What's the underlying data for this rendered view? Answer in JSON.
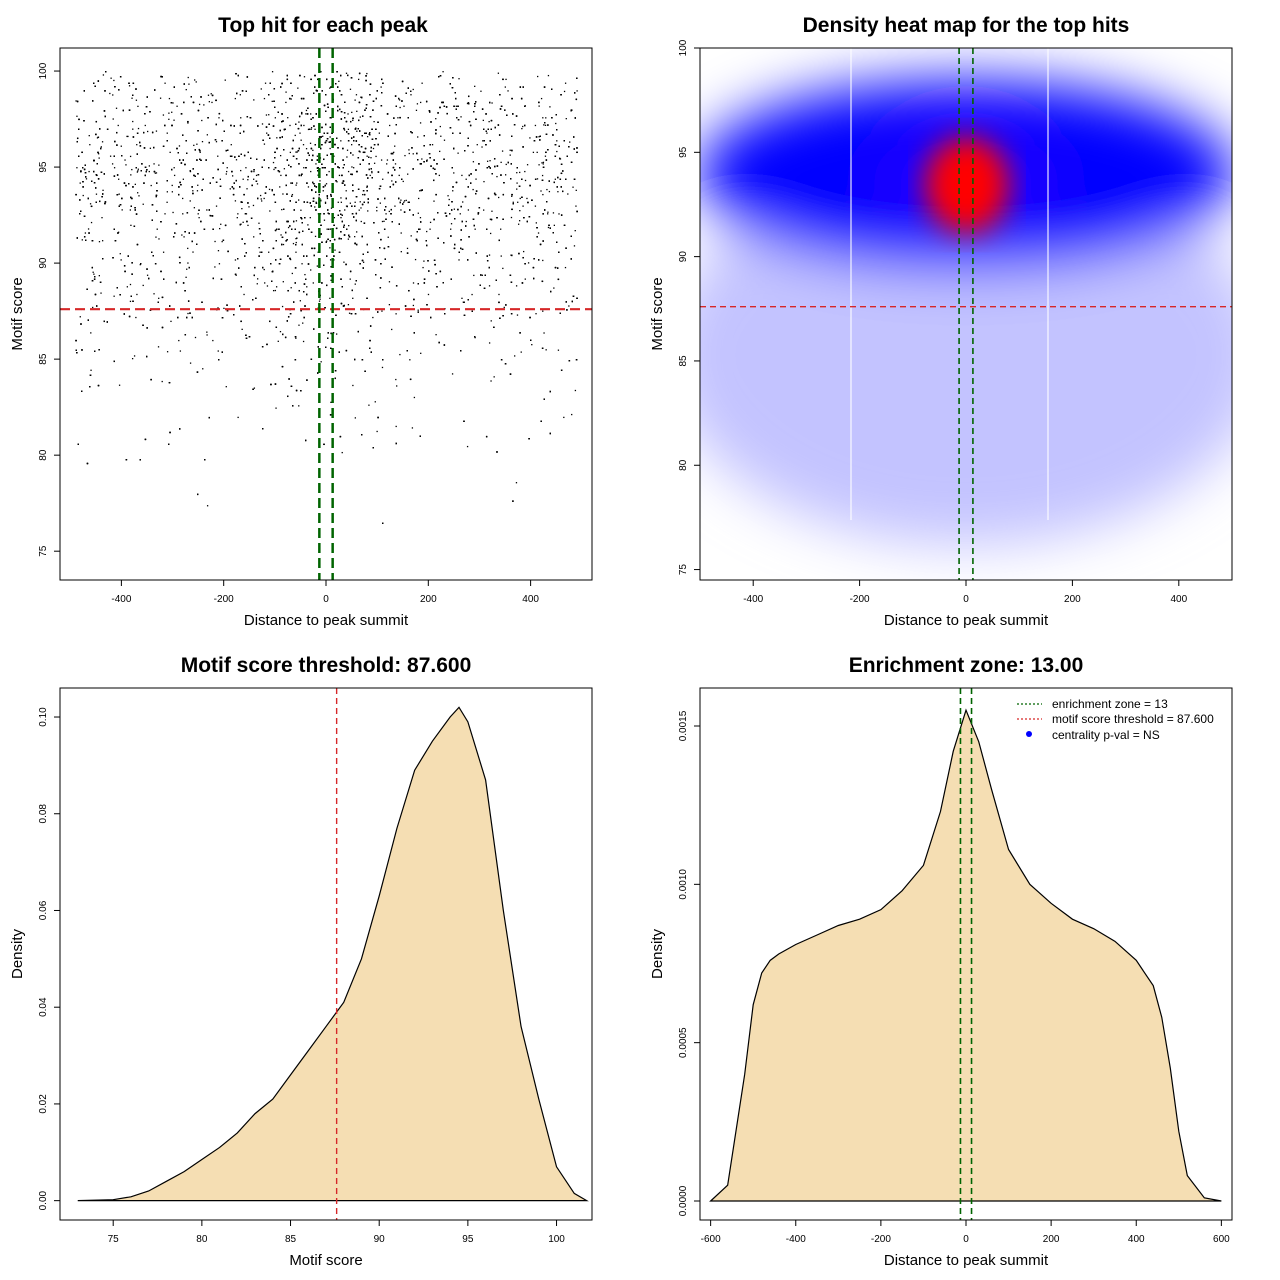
{
  "colors": {
    "fill": "#f5deb3",
    "threshold": "#d62728",
    "zone": "#006400",
    "heat_low": "#ffffff",
    "heat_mid": "#0000ff",
    "heat_high": "#ff0000",
    "point": "#000000"
  },
  "chart_data": [
    {
      "type": "scatter",
      "title": "Top hit for each peak",
      "xlabel": "Distance to peak summit",
      "ylabel": "Motif score",
      "xlim": [
        -520,
        520
      ],
      "ylim": [
        73.5,
        101.2
      ],
      "xticks": [
        -400,
        -200,
        0,
        200,
        400
      ],
      "yticks": [
        75,
        80,
        85,
        90,
        95,
        100
      ],
      "threshold_y": 87.6,
      "zone_x": [
        -13,
        13
      ],
      "point_density_profile": {
        "score_bins": [
          77,
          79,
          81,
          83,
          85,
          87,
          89,
          91,
          93,
          95,
          97,
          99
        ],
        "relative_density": [
          0.01,
          0.02,
          0.05,
          0.1,
          0.17,
          0.26,
          0.43,
          0.64,
          0.86,
          1.0,
          0.86,
          0.47
        ]
      }
    },
    {
      "type": "heatmap",
      "title": "Density heat map for the top hits",
      "xlabel": "Distance to peak summit",
      "ylabel": "Motif score",
      "xlim": [
        -500,
        500
      ],
      "ylim": [
        74.5,
        100
      ],
      "xticks": [
        -400,
        -200,
        0,
        200,
        400
      ],
      "yticks": [
        75,
        80,
        85,
        90,
        95,
        100
      ],
      "threshold_y": 87.6,
      "zone_x": [
        -13,
        13
      ],
      "density_peak": {
        "x": 5,
        "y": 93.3
      }
    },
    {
      "type": "area",
      "title": "Motif score threshold: 87.600",
      "xlabel": "Motif score",
      "ylabel": "Density",
      "xlim": [
        72,
        102
      ],
      "ylim": [
        -0.004,
        0.106
      ],
      "xticks": [
        75,
        80,
        85,
        90,
        95,
        100
      ],
      "yticks": [
        0.0,
        0.02,
        0.04,
        0.06,
        0.08,
        0.1
      ],
      "ytick_labels": [
        "0.00",
        "0.02",
        "0.04",
        "0.06",
        "0.08",
        "0.10"
      ],
      "threshold_x": 87.6,
      "x": [
        73,
        75,
        76,
        77,
        78,
        79,
        80,
        81,
        82,
        83,
        84,
        85,
        86,
        87,
        88,
        89,
        90,
        91,
        92,
        93,
        94,
        94.5,
        95,
        96,
        97,
        98,
        99,
        100,
        101,
        101.7
      ],
      "y": [
        0,
        0.0002,
        0.0008,
        0.002,
        0.004,
        0.006,
        0.0085,
        0.011,
        0.014,
        0.018,
        0.021,
        0.026,
        0.031,
        0.036,
        0.041,
        0.05,
        0.063,
        0.077,
        0.089,
        0.095,
        0.1,
        0.102,
        0.099,
        0.087,
        0.06,
        0.036,
        0.021,
        0.007,
        0.0015,
        0
      ]
    },
    {
      "type": "area",
      "title": "Enrichment zone: 13.00",
      "xlabel": "Distance to peak summit",
      "ylabel": "Density",
      "xlim": [
        -625,
        625
      ],
      "ylim": [
        -6e-05,
        0.00162
      ],
      "xticks": [
        -600,
        -400,
        -200,
        0,
        200,
        400,
        600
      ],
      "yticks": [
        0.0,
        0.0005,
        0.001,
        0.0015
      ],
      "ytick_labels": [
        "0.0000",
        "0.0005",
        "0.0010",
        "0.0015"
      ],
      "zone_x": [
        -13,
        13
      ],
      "x": [
        -600,
        -560,
        -520,
        -500,
        -480,
        -460,
        -440,
        -400,
        -350,
        -300,
        -250,
        -200,
        -150,
        -100,
        -60,
        -30,
        0,
        30,
        60,
        100,
        150,
        200,
        250,
        300,
        350,
        400,
        440,
        460,
        480,
        500,
        520,
        560,
        600
      ],
      "y": [
        0,
        5e-05,
        0.0004,
        0.00062,
        0.00072,
        0.00076,
        0.00078,
        0.00081,
        0.00084,
        0.00087,
        0.00089,
        0.00092,
        0.00098,
        0.00106,
        0.00123,
        0.00142,
        0.00155,
        0.00145,
        0.0013,
        0.00111,
        0.001,
        0.00094,
        0.00089,
        0.00086,
        0.00082,
        0.00076,
        0.00068,
        0.00058,
        0.00042,
        0.00022,
        8e-05,
        1e-05,
        0
      ],
      "legend": {
        "placement": "top-right",
        "items": [
          "enrichment zone = 13",
          "motif score threshold = 87.600",
          "centrality p-val = NS"
        ]
      }
    }
  ]
}
